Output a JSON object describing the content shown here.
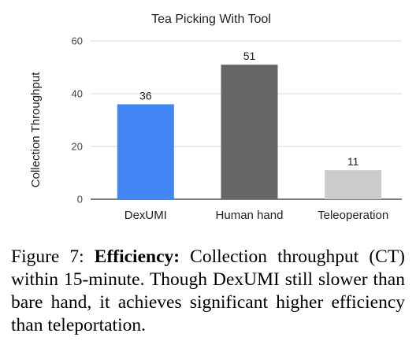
{
  "chart_data": {
    "type": "bar",
    "title": "Tea Picking With Tool",
    "ylabel": "Collection Throughput",
    "xlabel": "",
    "categories": [
      "DexUMI",
      "Human hand",
      "Teleoperation"
    ],
    "values": [
      36,
      51,
      11
    ],
    "data_labels": [
      "36",
      "51",
      "11"
    ],
    "bar_colors": [
      "#4285f4",
      "#666666",
      "#cccccc"
    ],
    "ylim": [
      0,
      60
    ],
    "yticks": [
      "0",
      "20",
      "40",
      "60"
    ],
    "grid": true,
    "legend": "none"
  },
  "caption": {
    "label": "Figure 7:",
    "bold": "Efficiency:",
    "text": "Collection throughput (CT) within 15-minute.  Though DexUMI still slower than bare hand, it achieves sig­nificant higher efficiency than teleportation."
  }
}
